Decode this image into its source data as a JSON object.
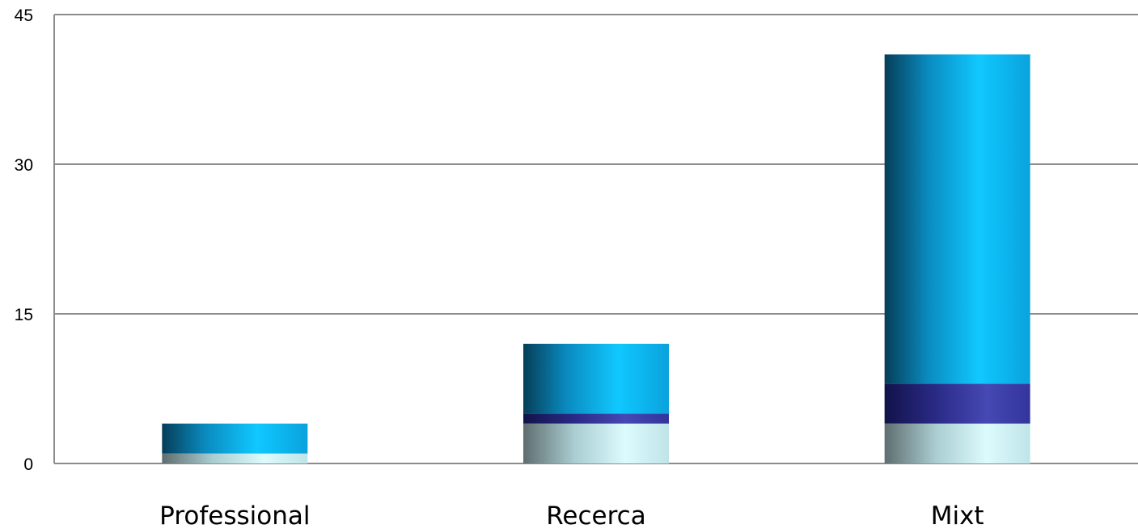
{
  "chart_data": {
    "type": "bar",
    "stacked": true,
    "title": "",
    "xlabel": "",
    "ylabel": "",
    "categories": [
      "Professional",
      "Recerca",
      "Mixt"
    ],
    "series": [
      {
        "values": [
          1,
          4,
          4
        ],
        "color": "#cfeff3"
      },
      {
        "values": [
          0,
          1,
          4
        ],
        "color": "#2e2f8c"
      },
      {
        "values": [
          3,
          7,
          33
        ],
        "color": "#0aa9dd"
      }
    ],
    "ylim": [
      0,
      45
    ],
    "yticks": [
      0,
      15,
      30,
      45
    ],
    "grid": true,
    "legend": "none"
  }
}
